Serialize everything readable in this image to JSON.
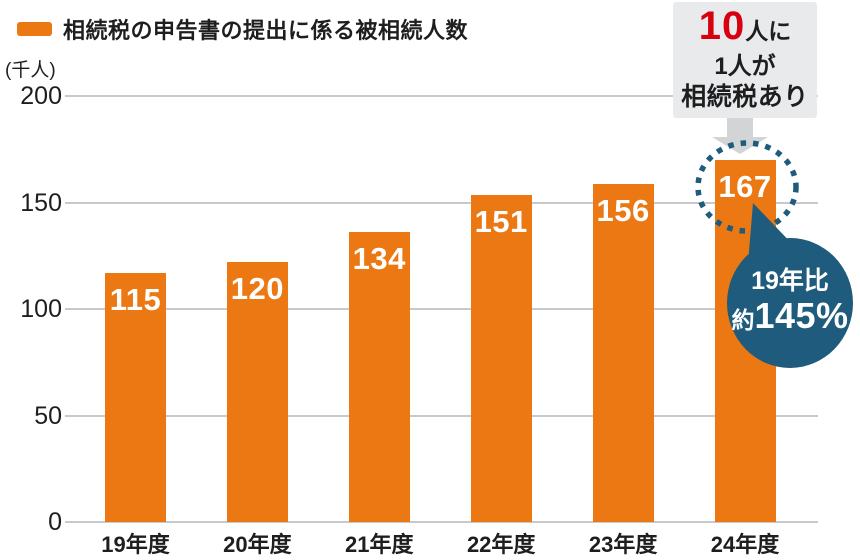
{
  "legend": {
    "label": "相続税の申告書の提出に係る被相続人数"
  },
  "chart_data": {
    "type": "bar",
    "title": "相続税の申告書の提出に係る被相続人数",
    "unit_label": "(千人)",
    "categories": [
      "19年度",
      "20年度",
      "21年度",
      "22年度",
      "23年度",
      "24年度"
    ],
    "series": [
      {
        "name": "相続税の申告書の提出に係る被相続人数",
        "values": [
          115,
          120,
          134,
          151,
          156,
          167
        ],
        "color": "#EC7813"
      }
    ],
    "ylim": [
      0,
      200
    ],
    "yticks": [
      0,
      50,
      100,
      150,
      200
    ],
    "grid": "horizontal-only",
    "legend_position": "top-left",
    "value_label_style": "white, inside bar top",
    "annotations": [
      {
        "id": "ratio-callout",
        "big": "10",
        "big_suffix": "人に",
        "line2": "1人が",
        "line3": "相続税あり",
        "accent_color": "#D7000F",
        "box_color": "#E9EAEB",
        "target": "24年度"
      },
      {
        "id": "comparison-bubble",
        "line1": "19年比",
        "prefix": "約",
        "value": "145%",
        "color": "#1F5B7C",
        "target": "24年度"
      }
    ]
  },
  "colors": {
    "bar": "#EC7813",
    "grid": "#C8C9CA",
    "arrow": "#D2D4D6",
    "accent_blue": "#1F5B7C",
    "accent_red": "#D7000F",
    "text": "#1E1E1E",
    "background": "#FFFFFF",
    "value_label": "#FFFFFF"
  }
}
